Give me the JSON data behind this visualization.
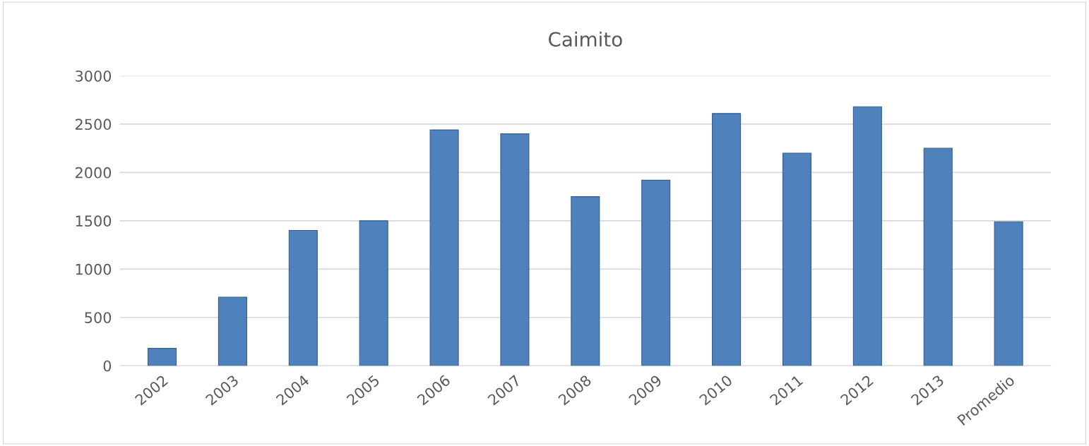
{
  "chart_data": {
    "type": "bar",
    "title": "Caimito",
    "categories": [
      "2002",
      "2003",
      "2004",
      "2005",
      "2006",
      "2007",
      "2008",
      "2009",
      "2010",
      "2011",
      "2012",
      "2013",
      "Promedio"
    ],
    "values": [
      180,
      710,
      1400,
      1500,
      2440,
      2400,
      1750,
      1920,
      2610,
      2200,
      2680,
      2250,
      1490
    ],
    "color": "#4f81bd",
    "ylim": [
      0,
      3000
    ],
    "yticks": [
      0,
      500,
      1000,
      1500,
      2000,
      2500,
      3000
    ],
    "grid": "y"
  }
}
